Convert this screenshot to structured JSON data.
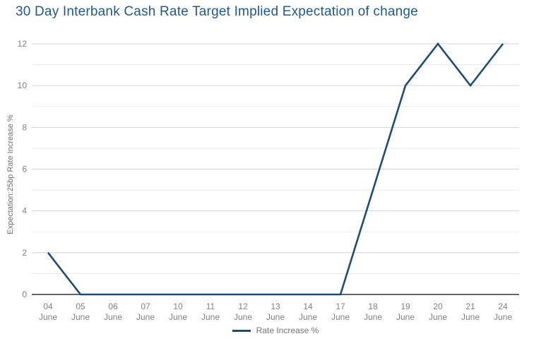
{
  "header": {
    "title": "30 Day Interbank Cash Rate Target Implied Expectation of change"
  },
  "legend": {
    "items": [
      {
        "label": "Rate Increase %",
        "color": "#1d4c77"
      }
    ]
  },
  "chart_data": {
    "type": "line",
    "title": "30 Day Interbank Cash Rate Target Implied Expectation of change",
    "categories": [
      "04 June",
      "05 June",
      "06 June",
      "07 June",
      "10 June",
      "11 June",
      "12 June",
      "13 June",
      "14 June",
      "17 June",
      "18 June",
      "19 June",
      "20 June",
      "21 June",
      "24 June"
    ],
    "series": [
      {
        "name": "Rate Increase %",
        "color": "#1d4c77",
        "values": [
          2,
          0,
          0,
          0,
          0,
          0,
          0,
          0,
          0,
          0,
          5,
          10,
          12,
          10,
          12
        ]
      }
    ],
    "xlabel": "",
    "ylabel": "Expectation:25bp Rate Increase %",
    "ylim": [
      0,
      12
    ],
    "y_tick_step": 2,
    "y_minor_step": 1,
    "grid": "horizontal",
    "legend_position": "bottom-center",
    "tick_label_color": "#808080",
    "grid_major_color": "#d2d2d2",
    "grid_minor_color": "#e9e9e9",
    "axis_line_color": "#333333"
  }
}
